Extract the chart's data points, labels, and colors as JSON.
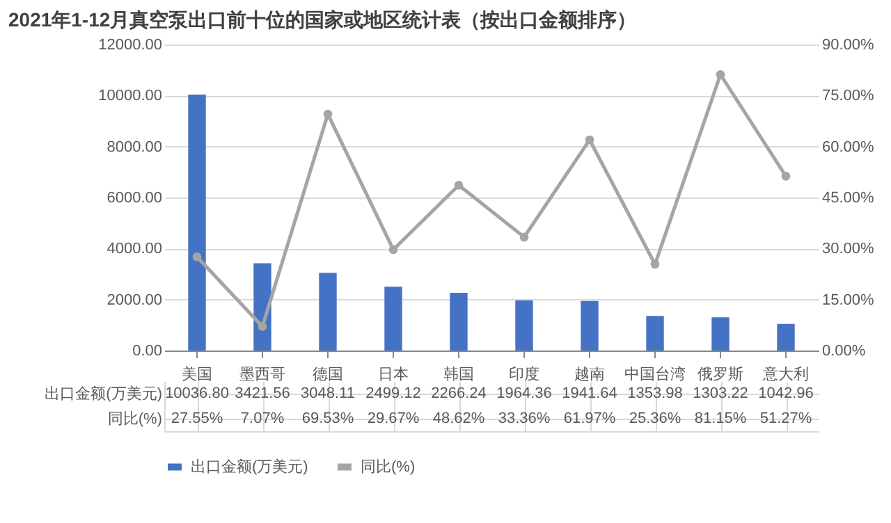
{
  "chart_data": {
    "type": "bar",
    "title": "2021年1-12月真空泵出口前十位的国家或地区统计表（按出口金额排序）",
    "categories": [
      "美国",
      "墨西哥",
      "德国",
      "日本",
      "韩国",
      "印度",
      "越南",
      "中国台湾",
      "俄罗斯",
      "意大利"
    ],
    "series": [
      {
        "name": "出口金额(万美元)",
        "color": "#4472c4",
        "values": [
          10036.8,
          3421.56,
          3048.11,
          2499.12,
          2266.24,
          1964.36,
          1941.64,
          1353.98,
          1303.22,
          1042.96
        ],
        "value_labels": [
          "10036.80",
          "3421.56",
          "3048.11",
          "2499.12",
          "2266.24",
          "1964.36",
          "1941.64",
          "1353.98",
          "1303.22",
          "1042.96"
        ]
      },
      {
        "name": "同比(%)",
        "type": "line",
        "axis": "y2",
        "color": "#a5a5a5",
        "marker": "circle",
        "values": [
          27.55,
          7.07,
          69.53,
          29.67,
          48.62,
          33.36,
          61.97,
          25.36,
          81.15,
          51.27
        ],
        "value_labels": [
          "27.55%",
          "7.07%",
          "69.53%",
          "29.67%",
          "48.62%",
          "33.36%",
          "61.97%",
          "25.36%",
          "81.15%",
          "51.27%"
        ]
      }
    ],
    "ylim": [
      0,
      12000
    ],
    "yticks": [
      {
        "value": 0,
        "label": "0.00"
      },
      {
        "value": 2000,
        "label": "2000.00"
      },
      {
        "value": 4000,
        "label": "4000.00"
      },
      {
        "value": 6000,
        "label": "6000.00"
      },
      {
        "value": 8000,
        "label": "8000.00"
      },
      {
        "value": 10000,
        "label": "10000.00"
      },
      {
        "value": 12000,
        "label": "12000.00"
      }
    ],
    "y2lim": [
      0,
      90
    ],
    "y2ticks": [
      {
        "value": 0,
        "label": "0.00%"
      },
      {
        "value": 15,
        "label": "15.00%"
      },
      {
        "value": 30,
        "label": "30.00%"
      },
      {
        "value": 45,
        "label": "45.00%"
      },
      {
        "value": 60,
        "label": "60.00%"
      },
      {
        "value": 75,
        "label": "75.00%"
      },
      {
        "value": 90,
        "label": "90.00%"
      }
    ],
    "grid": "y",
    "legend": "bottom",
    "line_style": "solid"
  }
}
